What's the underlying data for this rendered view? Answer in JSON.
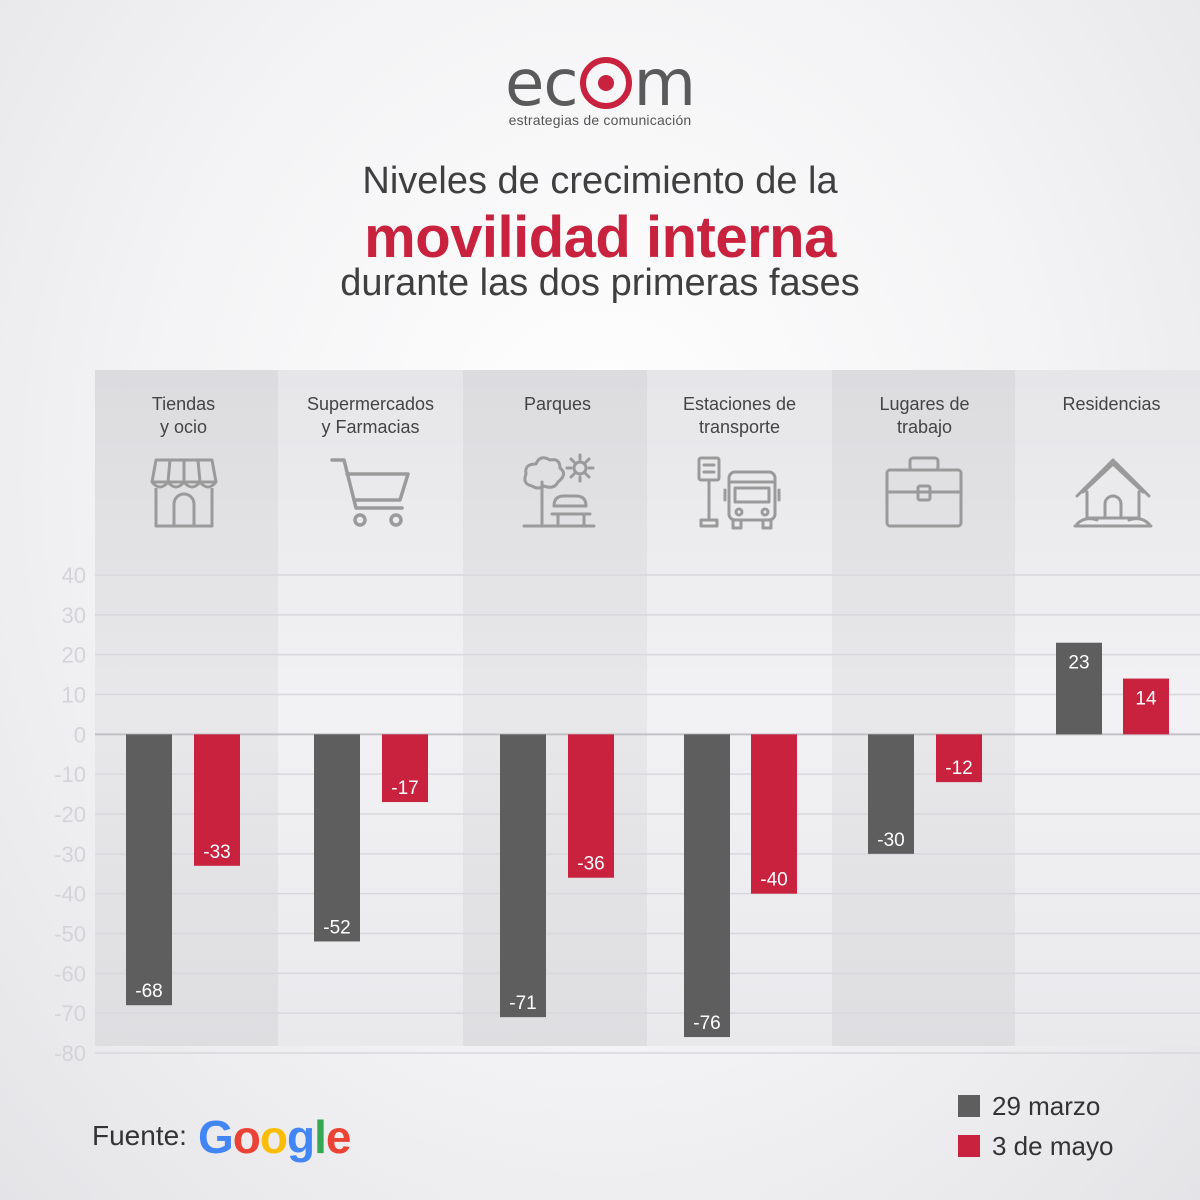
{
  "header": {
    "logo_text": "ecom",
    "logo_subtitle": "estrategias de comunicación",
    "title_line1": "Niveles de crecimiento de la",
    "title_line2": "movilidad interna",
    "title_line3": "durante las dos primeras fases"
  },
  "categories": [
    {
      "line1": "Tiendas",
      "line2": "y ocio",
      "icon": "store-icon"
    },
    {
      "line1": "Supermercados",
      "line2": "y Farmacias",
      "icon": "shopping-cart-icon"
    },
    {
      "line1": "Parques",
      "line2": "",
      "icon": "park-icon"
    },
    {
      "line1": "Estaciones de",
      "line2": "transporte",
      "icon": "bus-station-icon"
    },
    {
      "line1": "Lugares de",
      "line2": "trabajo",
      "icon": "briefcase-icon"
    },
    {
      "line1": "Residencias",
      "line2": "",
      "icon": "house-icon"
    }
  ],
  "legend": {
    "series1": "29 marzo",
    "series2": "3 de mayo"
  },
  "source": {
    "label": "Fuente:",
    "brand": "Google",
    "brand_colors": [
      "#4285F4",
      "#EA4335",
      "#FBBC05",
      "#4285F4",
      "#34A853",
      "#EA4335"
    ]
  },
  "colors": {
    "series1": "#5e5e5e",
    "series2": "#c8223f",
    "accent": "#c8223f"
  },
  "chart_data": {
    "type": "bar",
    "categories": [
      "Tiendas y ocio",
      "Supermercados y Farmacias",
      "Parques",
      "Estaciones de transporte",
      "Lugares de trabajo",
      "Residencias"
    ],
    "series": [
      {
        "name": "29 marzo",
        "values": [
          -68,
          -52,
          -71,
          -76,
          -30,
          23
        ]
      },
      {
        "name": "3 de mayo",
        "values": [
          -33,
          -17,
          -36,
          -40,
          -12,
          14
        ]
      }
    ],
    "yticks": [
      40,
      30,
      20,
      10,
      0,
      -10,
      -20,
      -30,
      -40,
      -50,
      -60,
      -70,
      -80
    ],
    "ylim": [
      -80,
      40
    ],
    "grid": true,
    "legend_position": "bottom-right"
  }
}
